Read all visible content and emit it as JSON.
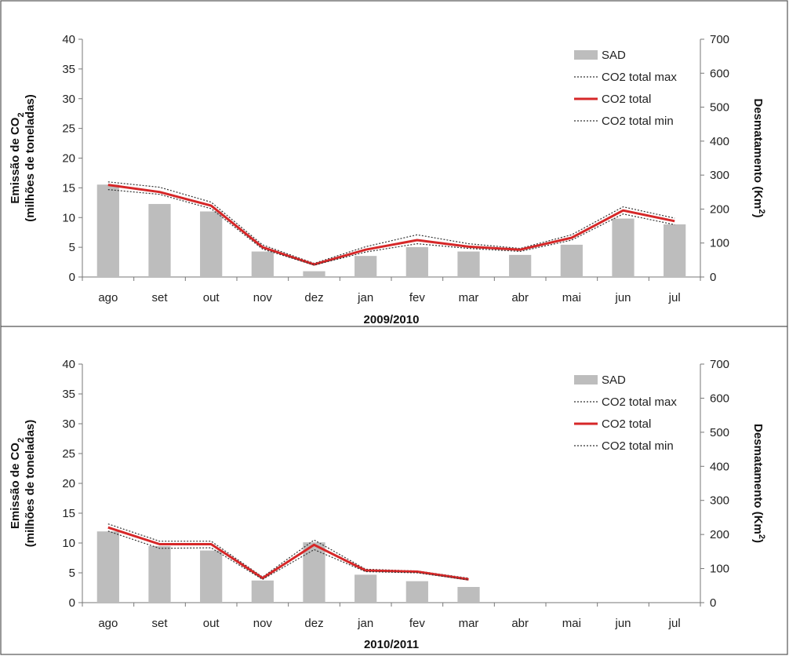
{
  "chart_data": [
    {
      "type": "bar",
      "title": "2009/2010",
      "categories": [
        "ago",
        "set",
        "out",
        "nov",
        "dez",
        "jan",
        "fev",
        "mar",
        "abr",
        "mai",
        "jun",
        "jul"
      ],
      "ylabel_line1": "Emissão de CO",
      "ylabel_sub": "2",
      "ylabel_line2": "(milhões de toneladas)",
      "y2label_main": "Desmatamento (Km",
      "y2label_sup": "2",
      "y2label_close": ")",
      "ylim": [
        0,
        40
      ],
      "y2lim": [
        0,
        700
      ],
      "yticks": [
        "0",
        "5",
        "10",
        "15",
        "20",
        "25",
        "30",
        "35",
        "40"
      ],
      "y2ticks": [
        "0",
        "100",
        "200",
        "300",
        "400",
        "500",
        "600",
        "700"
      ],
      "series": [
        {
          "name": "SAD",
          "kind": "bar",
          "axis": "right",
          "color": "#bdbdbd",
          "values": [
            272,
            215,
            193,
            75,
            17,
            62,
            88,
            75,
            65,
            95,
            172,
            155
          ]
        },
        {
          "name": "CO2 total max",
          "kind": "line",
          "axis": "left",
          "style": "dotted",
          "color": "#333333",
          "values": [
            16.0,
            15.1,
            12.6,
            5.4,
            2.3,
            5.1,
            7.1,
            5.6,
            4.8,
            7.1,
            11.8,
            9.9
          ]
        },
        {
          "name": "CO2 total",
          "kind": "line",
          "axis": "left",
          "style": "solid",
          "color": "#d62728",
          "values": [
            15.5,
            14.3,
            12.0,
            5.0,
            2.1,
            4.6,
            6.2,
            5.1,
            4.6,
            6.6,
            11.2,
            9.4
          ]
        },
        {
          "name": "CO2 total min",
          "kind": "line",
          "axis": "left",
          "style": "dotted",
          "color": "#333333",
          "values": [
            14.7,
            13.9,
            11.5,
            4.7,
            2.0,
            4.2,
            5.6,
            4.8,
            4.3,
            6.2,
            10.6,
            8.8
          ]
        }
      ],
      "legend": "top-right",
      "grid": false
    },
    {
      "type": "bar",
      "title": "2010/2011",
      "categories": [
        "ago",
        "set",
        "out",
        "nov",
        "dez",
        "jan",
        "fev",
        "mar",
        "abr",
        "mai",
        "jun",
        "jul"
      ],
      "ylabel_line1": "Emissão de CO",
      "ylabel_sub": "2",
      "ylabel_line2": "(milhões de toneladas)",
      "y2label_main": "Desmatamento (Km",
      "y2label_sup": "2",
      "y2label_close": ")",
      "ylim": [
        0,
        40
      ],
      "y2lim": [
        0,
        700
      ],
      "yticks": [
        "0",
        "5",
        "10",
        "15",
        "20",
        "25",
        "30",
        "35",
        "40"
      ],
      "y2ticks": [
        "0",
        "100",
        "200",
        "300",
        "400",
        "500",
        "600",
        "700"
      ],
      "series": [
        {
          "name": "SAD",
          "kind": "bar",
          "axis": "right",
          "color": "#bdbdbd",
          "values": [
            209,
            166,
            153,
            65,
            177,
            82,
            63,
            46,
            null,
            null,
            null,
            null
          ]
        },
        {
          "name": "CO2 total max",
          "kind": "line",
          "axis": "left",
          "style": "dotted",
          "color": "#333333",
          "values": [
            13.2,
            10.3,
            10.3,
            4.3,
            10.5,
            5.6,
            5.3,
            4.1,
            null,
            null,
            null,
            null
          ]
        },
        {
          "name": "CO2 total",
          "kind": "line",
          "axis": "left",
          "style": "solid",
          "color": "#d62728",
          "values": [
            12.6,
            9.8,
            9.8,
            4.1,
            9.7,
            5.4,
            5.2,
            3.9,
            null,
            null,
            null,
            null
          ]
        },
        {
          "name": "CO2 total min",
          "kind": "line",
          "axis": "left",
          "style": "dotted",
          "color": "#333333",
          "values": [
            12.0,
            9.1,
            9.2,
            3.9,
            8.9,
            5.2,
            5.0,
            3.8,
            null,
            null,
            null,
            null
          ]
        }
      ],
      "legend": "top-right",
      "grid": false
    }
  ]
}
